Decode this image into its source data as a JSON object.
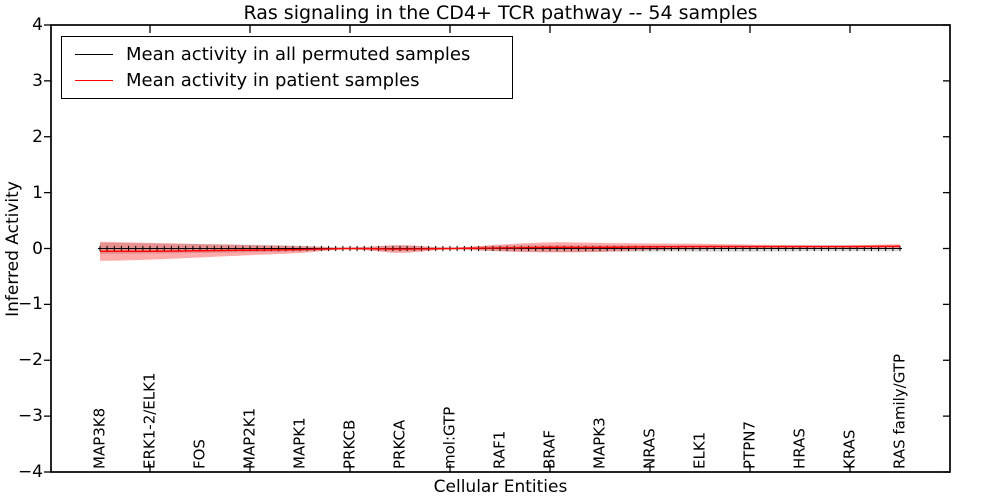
{
  "title": "Ras signaling in the CD4+ TCR pathway -- 54 samples",
  "axes": {
    "x_label": "Cellular Entities",
    "y_label": "Inferred Activity"
  },
  "legend": [
    {
      "label": "Mean activity in all permuted samples",
      "color": "#000000"
    },
    {
      "label": "Mean activity in patient samples",
      "color": "#ff0000"
    }
  ],
  "chart_data": {
    "type": "line",
    "title": "Ras signaling in the CD4+ TCR pathway -- 54 samples",
    "xlabel": "Cellular Entities",
    "ylabel": "Inferred Activity",
    "ylim": [
      -4,
      4
    ],
    "yticks": [
      -4,
      -3,
      -2,
      -1,
      0,
      1,
      2,
      3,
      4
    ],
    "grid": false,
    "legend_position": "upper left",
    "categories": [
      "MAP3K8",
      "ERK1-2/ELK1",
      "FOS",
      "MAP2K1",
      "MAPK1",
      "PRKCB",
      "PRKCA",
      "mol:GTP",
      "RAF1",
      "BRAF",
      "MAPK3",
      "NRAS",
      "ELK1",
      "PTPN7",
      "HRAS",
      "KRAS",
      "RAS family/GTP"
    ],
    "series": [
      {
        "name": "Mean activity in all permuted samples",
        "line_color": "#000000",
        "band_color": "rgba(128,128,128,0.30)",
        "marker": "+",
        "values": [
          0,
          0,
          0,
          0,
          0,
          0,
          0,
          0,
          0,
          0,
          0,
          0,
          0,
          0,
          0,
          0,
          0
        ],
        "std": [
          0.1,
          0.09,
          0.08,
          0.07,
          0.05,
          0.02,
          0.05,
          0.02,
          0.05,
          0.06,
          0.06,
          0.055,
          0.055,
          0.055,
          0.05,
          0.05,
          0.05
        ]
      },
      {
        "name": "Mean activity in patient samples",
        "line_color": "#ff0000",
        "band_color": "rgba(255,0,0,0.33)",
        "marker": null,
        "values": [
          -0.05,
          -0.05,
          -0.04,
          -0.03,
          -0.02,
          0.0,
          -0.01,
          0.0,
          0.01,
          0.02,
          0.02,
          0.03,
          0.035,
          0.035,
          0.035,
          0.035,
          0.04
        ],
        "std": [
          0.17,
          0.15,
          0.12,
          0.09,
          0.06,
          0.015,
          0.07,
          0.015,
          0.06,
          0.09,
          0.08,
          0.06,
          0.05,
          0.035,
          0.025,
          0.025,
          0.035
        ]
      }
    ]
  }
}
